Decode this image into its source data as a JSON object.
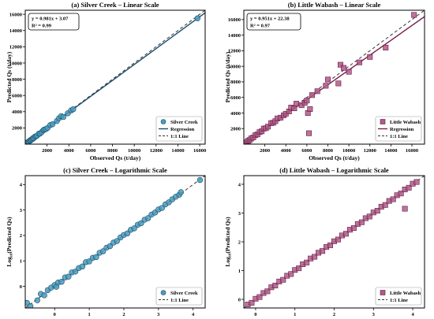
{
  "chart_data": [
    {
      "panel": "a",
      "type": "scatter",
      "title": "(a) Silver Creek – Linear Scale",
      "xlabel": "Observed Qs (t/day)",
      "ylabel": "Predicted Qs (t/day)",
      "xlim": [
        0,
        16500
      ],
      "ylim": [
        0,
        16500
      ],
      "xticks": [
        2000,
        4000,
        6000,
        8000,
        10000,
        12000,
        14000,
        16000
      ],
      "yticks": [
        2000,
        4000,
        6000,
        8000,
        10000,
        12000,
        14000,
        16000
      ],
      "log": false,
      "grid": false,
      "legend_position": "bottom-right",
      "colors": {
        "points": "#4a9cc0",
        "edge": "#1d4d66",
        "regression": "#1d4e6e",
        "identity": "#333333"
      },
      "marker": "circle",
      "equation": "y = 0.981x + 3.07",
      "r2": "R² = 0.99",
      "regression": {
        "slope": 0.981,
        "intercept": 3.07
      },
      "legend": [
        "Silver Creek",
        "Regression",
        "1:1 Line"
      ],
      "points": [
        [
          60,
          70
        ],
        [
          120,
          100
        ],
        [
          180,
          190
        ],
        [
          250,
          230
        ],
        [
          320,
          300
        ],
        [
          400,
          420
        ],
        [
          470,
          440
        ],
        [
          550,
          560
        ],
        [
          650,
          610
        ],
        [
          720,
          740
        ],
        [
          800,
          760
        ],
        [
          900,
          930
        ],
        [
          1000,
          980
        ],
        [
          1100,
          1050
        ],
        [
          1250,
          1290
        ],
        [
          1350,
          1300
        ],
        [
          1500,
          1480
        ],
        [
          1650,
          1700
        ],
        [
          1750,
          1800
        ],
        [
          1900,
          1850
        ],
        [
          2050,
          2000
        ],
        [
          2300,
          2350
        ],
        [
          2500,
          2450
        ],
        [
          2900,
          2850
        ],
        [
          3100,
          3200
        ],
        [
          3300,
          3450
        ],
        [
          3500,
          3350
        ],
        [
          3900,
          3800
        ],
        [
          4200,
          4150
        ],
        [
          4400,
          4300
        ],
        [
          15800,
          15500
        ]
      ]
    },
    {
      "panel": "b",
      "type": "scatter",
      "title": "(b) Little Wabash – Linear Scale",
      "xlabel": "Observed Qs (t/day)",
      "ylabel": "Predicted Qs (t/day)",
      "xlim": [
        0,
        17200
      ],
      "ylim": [
        0,
        17200
      ],
      "xticks": [
        2000,
        4000,
        6000,
        8000,
        10000,
        12000,
        14000,
        16000
      ],
      "yticks": [
        2000,
        4000,
        6000,
        8000,
        10000,
        12000,
        14000,
        16000
      ],
      "log": false,
      "grid": false,
      "legend_position": "bottom-right",
      "colors": {
        "points": "#b4588a",
        "edge": "#5a1f40",
        "regression": "#7a2150",
        "identity": "#333333"
      },
      "marker": "square",
      "equation": "y = 0.951x + 22.38",
      "r2": "R² = 0.97",
      "regression": {
        "slope": 0.951,
        "intercept": 22.38
      },
      "legend": [
        "Little Wabash",
        "Regression",
        "1:1 Line"
      ],
      "points": [
        [
          100,
          110
        ],
        [
          250,
          240
        ],
        [
          400,
          420
        ],
        [
          550,
          520
        ],
        [
          700,
          730
        ],
        [
          900,
          860
        ],
        [
          1100,
          1150
        ],
        [
          1300,
          1250
        ],
        [
          1500,
          1550
        ],
        [
          1700,
          1650
        ],
        [
          1900,
          2000
        ],
        [
          2100,
          2050
        ],
        [
          2300,
          2250
        ],
        [
          2600,
          2700
        ],
        [
          2800,
          2750
        ],
        [
          3000,
          2950
        ],
        [
          3200,
          3300
        ],
        [
          3500,
          3400
        ],
        [
          3800,
          3700
        ],
        [
          4000,
          3900
        ],
        [
          4300,
          4200
        ],
        [
          4500,
          4700
        ],
        [
          4800,
          4600
        ],
        [
          5000,
          5200
        ],
        [
          5500,
          5000
        ],
        [
          5800,
          5300
        ],
        [
          6000,
          5600
        ],
        [
          6200,
          1400
        ],
        [
          6100,
          4000
        ],
        [
          6300,
          4500
        ],
        [
          6500,
          6300
        ],
        [
          7000,
          6800
        ],
        [
          7800,
          7500
        ],
        [
          8000,
          8300
        ],
        [
          9000,
          7800
        ],
        [
          9200,
          10200
        ],
        [
          9500,
          9800
        ],
        [
          10000,
          9300
        ],
        [
          11000,
          10500
        ],
        [
          12000,
          11200
        ],
        [
          13500,
          12400
        ],
        [
          16200,
          16600
        ]
      ]
    },
    {
      "panel": "c",
      "type": "scatter",
      "title": "(c) Silver Creek – Logarithmic Scale",
      "xlabel": "",
      "ylabel": "Log₁₀(Predicted Qs)",
      "xlim": [
        -0.85,
        4.35
      ],
      "ylim": [
        -0.85,
        4.35
      ],
      "xticks": [
        0,
        1,
        2,
        3,
        4
      ],
      "yticks": [
        0,
        1,
        2,
        3,
        4
      ],
      "log": true,
      "grid": false,
      "legend_position": "bottom-right",
      "colors": {
        "points": "#4a9cc0",
        "edge": "#1d4d66",
        "identity": "#333333"
      },
      "marker": "circle",
      "legend": [
        "Silver Creek",
        "1:1 Line"
      ],
      "points": [
        [
          -0.8,
          -0.65
        ],
        [
          -0.7,
          -0.78
        ],
        [
          -0.5,
          -0.55
        ],
        [
          -0.4,
          -0.3
        ],
        [
          -0.3,
          -0.35
        ],
        [
          -0.2,
          -0.15
        ],
        [
          -0.1,
          -0.05
        ],
        [
          0,
          0.05
        ],
        [
          0.05,
          -0.02
        ],
        [
          0.1,
          0.15
        ],
        [
          0.2,
          0.18
        ],
        [
          0.3,
          0.35
        ],
        [
          0.4,
          0.38
        ],
        [
          0.5,
          0.55
        ],
        [
          0.6,
          0.58
        ],
        [
          0.7,
          0.72
        ],
        [
          0.8,
          0.78
        ],
        [
          0.9,
          0.95
        ],
        [
          1,
          0.98
        ],
        [
          1.1,
          1.12
        ],
        [
          1.2,
          1.15
        ],
        [
          1.3,
          1.32
        ],
        [
          1.4,
          1.38
        ],
        [
          1.5,
          1.52
        ],
        [
          1.6,
          1.58
        ],
        [
          1.7,
          1.72
        ],
        [
          1.8,
          1.78
        ],
        [
          1.9,
          1.92
        ],
        [
          2,
          2.02
        ],
        [
          2.1,
          2.08
        ],
        [
          2.2,
          2.22
        ],
        [
          2.3,
          2.28
        ],
        [
          2.4,
          2.42
        ],
        [
          2.5,
          2.48
        ],
        [
          2.6,
          2.62
        ],
        [
          2.7,
          2.68
        ],
        [
          2.8,
          2.82
        ],
        [
          2.9,
          2.9
        ],
        [
          3,
          3.02
        ],
        [
          3.1,
          3.08
        ],
        [
          3.2,
          3.22
        ],
        [
          3.3,
          3.3
        ],
        [
          3.4,
          3.42
        ],
        [
          3.5,
          3.52
        ],
        [
          3.6,
          3.6
        ],
        [
          3.65,
          3.7
        ],
        [
          4.2,
          4.18
        ]
      ]
    },
    {
      "panel": "d",
      "type": "scatter",
      "title": "(d) Little Wabash – Logarithmic Scale",
      "xlabel": "",
      "ylabel": "Log₁₀(Predicted Qs)",
      "xlim": [
        -0.3,
        4.3
      ],
      "ylim": [
        -0.3,
        4.3
      ],
      "xticks": [
        0,
        1,
        2,
        3,
        4
      ],
      "yticks": [
        0,
        1,
        2,
        3,
        4
      ],
      "log": true,
      "grid": false,
      "legend_position": "bottom-right",
      "colors": {
        "points": "#b4588a",
        "edge": "#5a1f40",
        "identity": "#333333"
      },
      "marker": "square",
      "legend": [
        "Little Wabash",
        "1:1 Line"
      ],
      "points": [
        [
          -0.2,
          -0.18
        ],
        [
          -0.1,
          -0.12
        ],
        [
          0,
          0.02
        ],
        [
          0.1,
          0.08
        ],
        [
          0.2,
          0.22
        ],
        [
          0.3,
          0.28
        ],
        [
          0.4,
          0.42
        ],
        [
          0.5,
          0.48
        ],
        [
          0.6,
          0.62
        ],
        [
          0.7,
          0.68
        ],
        [
          0.8,
          0.82
        ],
        [
          0.9,
          0.88
        ],
        [
          1,
          1.02
        ],
        [
          1.1,
          1.08
        ],
        [
          1.2,
          1.22
        ],
        [
          1.3,
          1.28
        ],
        [
          1.4,
          1.42
        ],
        [
          1.5,
          1.48
        ],
        [
          1.6,
          1.62
        ],
        [
          1.7,
          1.68
        ],
        [
          1.8,
          1.82
        ],
        [
          1.9,
          1.88
        ],
        [
          2,
          2.02
        ],
        [
          2.1,
          2.08
        ],
        [
          2.2,
          2.22
        ],
        [
          2.3,
          2.28
        ],
        [
          2.4,
          2.42
        ],
        [
          2.5,
          2.48
        ],
        [
          2.6,
          2.62
        ],
        [
          2.7,
          2.68
        ],
        [
          2.8,
          2.82
        ],
        [
          2.9,
          2.88
        ],
        [
          3,
          3.02
        ],
        [
          3.1,
          3.08
        ],
        [
          3.2,
          3.22
        ],
        [
          3.3,
          3.28
        ],
        [
          3.4,
          3.42
        ],
        [
          3.5,
          3.48
        ],
        [
          3.6,
          3.62
        ],
        [
          3.7,
          3.68
        ],
        [
          3.8,
          3.82
        ],
        [
          3.9,
          3.88
        ],
        [
          4,
          4.02
        ],
        [
          4.1,
          4.08
        ],
        [
          3.8,
          3.15
        ]
      ]
    }
  ]
}
